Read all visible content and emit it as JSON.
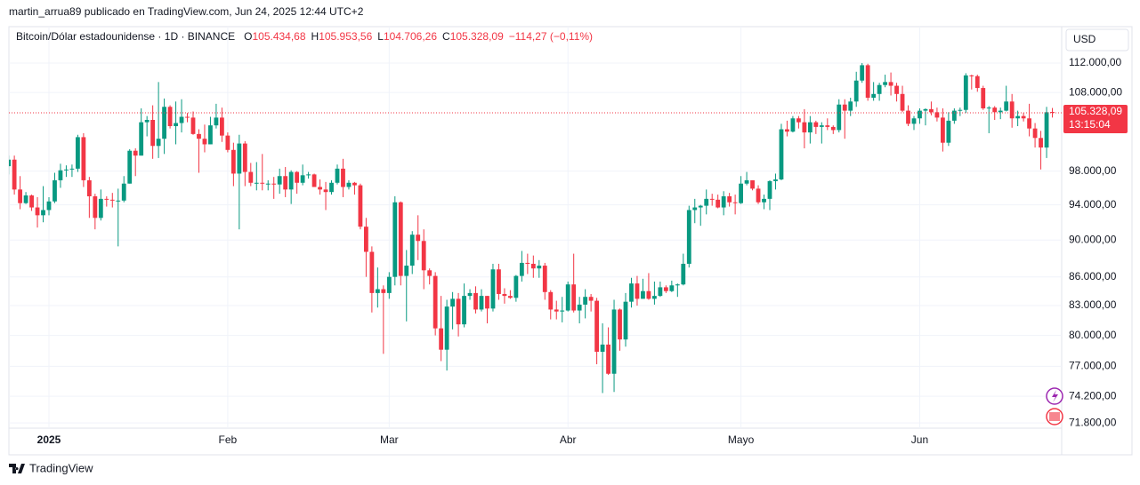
{
  "header": {
    "byline": "martin_arrua89 publicado en TradingView.com, Jun 24, 2025 12:44 UTC+2",
    "footer": "TradingView"
  },
  "chart_data": {
    "type": "candlestick",
    "symbol": "Bitcoin/Dólar estadounidense · 1D · BINANCE",
    "ohlc_legend": [
      {
        "key": "O",
        "value": "105.434,68"
      },
      {
        "key": "H",
        "value": "105.953,56"
      },
      {
        "key": "L",
        "value": "104.706,26"
      },
      {
        "key": "C",
        "value": "105.328,09"
      }
    ],
    "change": "−114,27 (−0,11%)",
    "currency": "USD",
    "price_label": {
      "value": 105328.09,
      "label": "105.328,09"
    },
    "countdown": "13:15:04",
    "colors": {
      "up": "#089981",
      "down": "#f23645"
    },
    "log_scale": true,
    "grid": true,
    "ylim": [
      71340,
      117150
    ],
    "yticks": [
      {
        "value": 112000,
        "label": "112.000,00"
      },
      {
        "value": 108000,
        "label": "108.000,00"
      },
      {
        "value": 98000,
        "label": "98.000,00"
      },
      {
        "value": 94000,
        "label": "94.000,00"
      },
      {
        "value": 90000,
        "label": "90.000,00"
      },
      {
        "value": 86000,
        "label": "86.000,00"
      },
      {
        "value": 83000,
        "label": "83.000,00"
      },
      {
        "value": 80000,
        "label": "80.000,00"
      },
      {
        "value": 77000,
        "label": "77.000,00"
      },
      {
        "value": 74200,
        "label": "74.200,00"
      },
      {
        "value": 71800,
        "label": "71.800,00"
      }
    ],
    "categories": [
      null,
      null,
      null,
      null,
      null,
      null,
      null,
      "2025",
      null,
      null,
      null,
      null,
      null,
      null,
      null,
      null,
      null,
      null,
      null,
      null,
      null,
      null,
      null,
      null,
      null,
      null,
      null,
      null,
      null,
      null,
      null,
      null,
      null,
      null,
      null,
      null,
      null,
      null,
      "Feb",
      null,
      null,
      null,
      null,
      null,
      null,
      null,
      null,
      null,
      null,
      null,
      null,
      null,
      null,
      null,
      null,
      null,
      null,
      null,
      null,
      null,
      null,
      null,
      null,
      null,
      null,
      null,
      "Mar",
      null,
      null,
      null,
      null,
      null,
      null,
      null,
      null,
      null,
      null,
      null,
      null,
      null,
      null,
      null,
      null,
      null,
      null,
      null,
      null,
      null,
      null,
      null,
      null,
      null,
      null,
      null,
      null,
      null,
      null,
      "Abr",
      null,
      null,
      null,
      null,
      null,
      null,
      null,
      null,
      null,
      null,
      null,
      null,
      null,
      null,
      null,
      null,
      null,
      null,
      null,
      null,
      null,
      null,
      null,
      null,
      null,
      null,
      null,
      null,
      null,
      "Mayo",
      null,
      null,
      null,
      null,
      null,
      null,
      null,
      null,
      null,
      null,
      null,
      null,
      null,
      null,
      null,
      null,
      null,
      null,
      null,
      null,
      null,
      null,
      null,
      null,
      null,
      null,
      null,
      null,
      null,
      null,
      "Jun",
      null,
      null,
      null,
      null,
      null,
      null,
      null,
      null,
      null,
      null,
      null,
      null,
      null,
      null,
      null,
      null,
      null,
      null,
      null,
      null,
      null,
      null,
      null
    ],
    "ohlc": [
      [
        98600,
        99900,
        97600,
        99400
      ],
      [
        99400,
        99900,
        95200,
        95800
      ],
      [
        95800,
        97400,
        93500,
        94200
      ],
      [
        94200,
        95500,
        94100,
        95100
      ],
      [
        95100,
        95200,
        93300,
        93700
      ],
      [
        93700,
        94900,
        91400,
        92800
      ],
      [
        92800,
        96200,
        92000,
        93400
      ],
      [
        93400,
        94900,
        92800,
        94400
      ],
      [
        94400,
        97800,
        94200,
        96900
      ],
      [
        96900,
        98900,
        96000,
        98100
      ],
      [
        98100,
        98700,
        97300,
        98200
      ],
      [
        98200,
        98800,
        97300,
        98300
      ],
      [
        98300,
        102500,
        97900,
        102200
      ],
      [
        102200,
        102700,
        96100,
        96900
      ],
      [
        96900,
        97300,
        92500,
        95000
      ],
      [
        95000,
        95300,
        91200,
        92500
      ],
      [
        92500,
        95800,
        92200,
        94700
      ],
      [
        94700,
        95000,
        93800,
        94600
      ],
      [
        94600,
        95400,
        93700,
        94500
      ],
      [
        94500,
        95900,
        89300,
        94500
      ],
      [
        94500,
        97400,
        94300,
        96500
      ],
      [
        96500,
        100700,
        96500,
        100500
      ],
      [
        100500,
        100800,
        97400,
        99900
      ],
      [
        99900,
        105900,
        99900,
        104100
      ],
      [
        104100,
        104900,
        102300,
        104400
      ],
      [
        104400,
        106300,
        99500,
        101100
      ],
      [
        101100,
        109400,
        99600,
        102000
      ],
      [
        102000,
        107200,
        100100,
        106100
      ],
      [
        106100,
        106300,
        103300,
        103600
      ],
      [
        103600,
        106800,
        101300,
        104000
      ],
      [
        104000,
        107100,
        102800,
        104800
      ],
      [
        104800,
        105300,
        104100,
        104700
      ],
      [
        104700,
        105500,
        102500,
        102600
      ],
      [
        102600,
        103200,
        97800,
        102000
      ],
      [
        102000,
        103800,
        100300,
        101300
      ],
      [
        101300,
        104800,
        101300,
        103700
      ],
      [
        103700,
        106500,
        103300,
        104700
      ],
      [
        104700,
        106000,
        101600,
        102400
      ],
      [
        102400,
        102800,
        100300,
        100600
      ],
      [
        100600,
        101500,
        96200,
        97700
      ],
      [
        97700,
        102500,
        91200,
        101400
      ],
      [
        101400,
        101700,
        96200,
        97900
      ],
      [
        97900,
        99000,
        96200,
        96600
      ],
      [
        96600,
        99100,
        95700,
        96600
      ],
      [
        96600,
        100100,
        95700,
        96500
      ],
      [
        96500,
        96900,
        95700,
        96500
      ],
      [
        96500,
        97300,
        94700,
        96400
      ],
      [
        96400,
        98300,
        95300,
        97400
      ],
      [
        97400,
        98500,
        94900,
        95800
      ],
      [
        95800,
        98100,
        94100,
        97900
      ],
      [
        97900,
        98000,
        95300,
        96600
      ],
      [
        96600,
        98800,
        96300,
        97500
      ],
      [
        97500,
        97900,
        97100,
        97600
      ],
      [
        97600,
        97700,
        96100,
        96100
      ],
      [
        96100,
        97000,
        95200,
        95800
      ],
      [
        95800,
        96700,
        93400,
        95500
      ],
      [
        95500,
        96900,
        95200,
        96600
      ],
      [
        96600,
        98800,
        96400,
        98300
      ],
      [
        98300,
        99500,
        94900,
        96100
      ],
      [
        96100,
        96900,
        95800,
        96600
      ],
      [
        96600,
        96700,
        95200,
        96300
      ],
      [
        96300,
        96500,
        91200,
        91500
      ],
      [
        91500,
        92500,
        86000,
        88700
      ],
      [
        88700,
        89300,
        82300,
        84300
      ],
      [
        84300,
        87000,
        82800,
        84700
      ],
      [
        84700,
        85100,
        78200,
        84300
      ],
      [
        84300,
        86500,
        83700,
        86000
      ],
      [
        86000,
        95000,
        85100,
        94300
      ],
      [
        94300,
        94400,
        85100,
        86100
      ],
      [
        86100,
        88900,
        81400,
        87200
      ],
      [
        87200,
        91000,
        86300,
        90600
      ],
      [
        90600,
        92800,
        87800,
        89900
      ],
      [
        89900,
        91200,
        84700,
        86700
      ],
      [
        86700,
        86900,
        85200,
        86100
      ],
      [
        86100,
        86500,
        80000,
        80700
      ],
      [
        80700,
        84000,
        77500,
        78600
      ],
      [
        78600,
        83600,
        76600,
        82900
      ],
      [
        82900,
        84400,
        80600,
        83700
      ],
      [
        83700,
        84300,
        79900,
        81100
      ],
      [
        81100,
        85300,
        80800,
        84000
      ],
      [
        84000,
        84700,
        83600,
        84300
      ],
      [
        84300,
        85000,
        82200,
        82600
      ],
      [
        82600,
        84700,
        82400,
        84000
      ],
      [
        84000,
        84000,
        81200,
        82700
      ],
      [
        82700,
        87400,
        82400,
        86800
      ],
      [
        86800,
        87400,
        83600,
        84200
      ],
      [
        84200,
        84800,
        83200,
        84000
      ],
      [
        84000,
        84600,
        83700,
        83800
      ],
      [
        83800,
        86200,
        83400,
        86100
      ],
      [
        86100,
        88800,
        85500,
        87500
      ],
      [
        87500,
        88500,
        86300,
        87400
      ],
      [
        87400,
        88300,
        85900,
        86900
      ],
      [
        86900,
        87800,
        85900,
        87200
      ],
      [
        87200,
        87500,
        83600,
        84400
      ],
      [
        84400,
        84600,
        81600,
        82600
      ],
      [
        82600,
        83500,
        81600,
        82400
      ],
      [
        82400,
        83900,
        81300,
        82500
      ],
      [
        82500,
        85500,
        82400,
        85200
      ],
      [
        85200,
        88500,
        82300,
        82500
      ],
      [
        82500,
        83900,
        81200,
        83100
      ],
      [
        83100,
        84700,
        81700,
        83900
      ],
      [
        83900,
        84200,
        82400,
        83500
      ],
      [
        83500,
        83800,
        77200,
        78400
      ],
      [
        78400,
        81200,
        74500,
        79100
      ],
      [
        79100,
        80800,
        76200,
        76300
      ],
      [
        76300,
        83600,
        74600,
        82600
      ],
      [
        82600,
        82700,
        78500,
        79600
      ],
      [
        79600,
        84300,
        78900,
        83400
      ],
      [
        83400,
        85900,
        82800,
        85300
      ],
      [
        85300,
        86100,
        83000,
        83700
      ],
      [
        83700,
        85800,
        83700,
        84500
      ],
      [
        84500,
        86400,
        83600,
        83700
      ],
      [
        83700,
        85500,
        83100,
        84000
      ],
      [
        84000,
        85500,
        83900,
        84900
      ],
      [
        84900,
        85100,
        84300,
        84500
      ],
      [
        84500,
        85600,
        84400,
        85100
      ],
      [
        85100,
        85300,
        83900,
        85200
      ],
      [
        85200,
        88500,
        85100,
        87400
      ],
      [
        87400,
        93900,
        87000,
        93400
      ],
      [
        93400,
        94700,
        91900,
        93700
      ],
      [
        93700,
        94000,
        91600,
        93900
      ],
      [
        93900,
        95800,
        92900,
        94700
      ],
      [
        94700,
        95300,
        93900,
        94600
      ],
      [
        94600,
        95200,
        93600,
        93700
      ],
      [
        93700,
        95600,
        92800,
        95000
      ],
      [
        95000,
        95400,
        93800,
        94300
      ],
      [
        94300,
        95200,
        92900,
        94200
      ],
      [
        94200,
        97400,
        94100,
        96500
      ],
      [
        96500,
        97900,
        96300,
        96900
      ],
      [
        96900,
        96900,
        95700,
        95900
      ],
      [
        95900,
        96300,
        94100,
        94300
      ],
      [
        94300,
        95200,
        93500,
        94700
      ],
      [
        94700,
        96900,
        93400,
        96800
      ],
      [
        96800,
        97700,
        95800,
        97000
      ],
      [
        97000,
        103900,
        96900,
        103200
      ],
      [
        103200,
        104300,
        102300,
        102900
      ],
      [
        102900,
        104900,
        102800,
        104600
      ],
      [
        104600,
        104900,
        103300,
        104100
      ],
      [
        104100,
        105800,
        100800,
        102800
      ],
      [
        102800,
        104900,
        101400,
        104100
      ],
      [
        104100,
        104300,
        102600,
        103500
      ],
      [
        103500,
        104100,
        101400,
        103700
      ],
      [
        103700,
        104600,
        103100,
        103500
      ],
      [
        103500,
        103700,
        102600,
        103100
      ],
      [
        103100,
        107100,
        102800,
        106400
      ],
      [
        106400,
        107100,
        102000,
        105600
      ],
      [
        105600,
        107300,
        104900,
        106800
      ],
      [
        106800,
        110800,
        106100,
        109600
      ],
      [
        109600,
        112000,
        109300,
        111700
      ],
      [
        111700,
        111900,
        106900,
        107300
      ],
      [
        107300,
        109400,
        106900,
        107800
      ],
      [
        107800,
        109300,
        106900,
        109000
      ],
      [
        109000,
        110400,
        108700,
        109400
      ],
      [
        109400,
        110700,
        107600,
        108900
      ],
      [
        108900,
        109300,
        106800,
        107800
      ],
      [
        107800,
        108900,
        105400,
        105600
      ],
      [
        105600,
        106300,
        103600,
        103900
      ],
      [
        103900,
        104900,
        103100,
        104600
      ],
      [
        104600,
        105900,
        103900,
        105600
      ],
      [
        105600,
        105900,
        103700,
        105800
      ],
      [
        105800,
        106800,
        105000,
        105400
      ],
      [
        105400,
        106000,
        104200,
        104700
      ],
      [
        104700,
        105900,
        100400,
        101500
      ],
      [
        101500,
        105400,
        101100,
        104300
      ],
      [
        104300,
        105900,
        103900,
        105600
      ],
      [
        105600,
        106000,
        104900,
        105700
      ],
      [
        105700,
        110600,
        105300,
        110300
      ],
      [
        110300,
        110400,
        108400,
        110200
      ],
      [
        110200,
        110400,
        108100,
        108600
      ],
      [
        108600,
        108900,
        105700,
        105900
      ],
      [
        105900,
        106200,
        102700,
        106000
      ],
      [
        106000,
        106200,
        104400,
        105400
      ],
      [
        105400,
        106000,
        104500,
        105600
      ],
      [
        105600,
        108900,
        105500,
        106800
      ],
      [
        106800,
        107800,
        103400,
        104600
      ],
      [
        104600,
        105600,
        103600,
        104900
      ],
      [
        104900,
        105300,
        104200,
        104600
      ],
      [
        104600,
        106500,
        102300,
        103300
      ],
      [
        103300,
        104000,
        100900,
        102100
      ],
      [
        102100,
        103000,
        98200,
        100900
      ],
      [
        100900,
        106100,
        99600,
        105400
      ],
      [
        105434.68,
        105953.56,
        104706.26,
        105328.09
      ]
    ]
  }
}
